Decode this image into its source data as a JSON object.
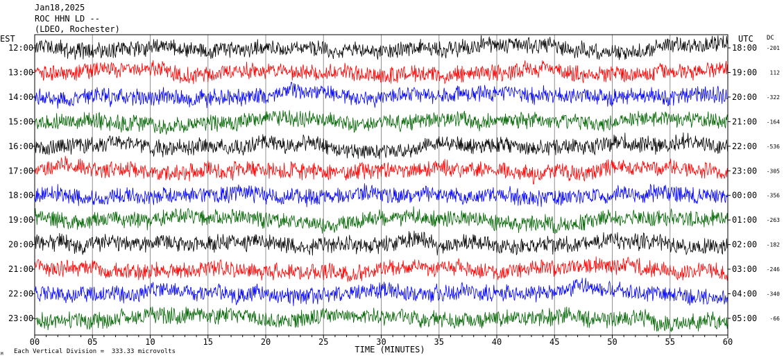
{
  "header": {
    "date": "Jan18,2025",
    "station": "ROC HHN LD --",
    "network": "(LDEO, Rochester)"
  },
  "footer": {
    "scale_note": "Each Vertical Division =  333.33 microvolts",
    "small_mark": "M"
  },
  "chart_data": {
    "type": "line",
    "left_axis_title": "EST",
    "right_axis_title": "UTC",
    "dc_title": "DC",
    "xlabel": "TIME (MINUTES)",
    "x_ticks": [
      "00",
      "05",
      "10",
      "15",
      "20",
      "25",
      "30",
      "35",
      "40",
      "45",
      "50",
      "55",
      "60"
    ],
    "xlim": [
      0,
      60
    ],
    "grid_vertical_every_minutes": 5,
    "trace_colors": [
      "#000000",
      "#ff0000",
      "#0000ff",
      "#006400"
    ],
    "rows": [
      {
        "est": "12:00",
        "utc": "18:00",
        "dc": "-201"
      },
      {
        "est": "13:00",
        "utc": "19:00",
        "dc": "112"
      },
      {
        "est": "14:00",
        "utc": "20:00",
        "dc": "-322"
      },
      {
        "est": "15:00",
        "utc": "21:00",
        "dc": "-164"
      },
      {
        "est": "16:00",
        "utc": "22:00",
        "dc": "-536"
      },
      {
        "est": "17:00",
        "utc": "23:00",
        "dc": "-305"
      },
      {
        "est": "18:00",
        "utc": "00:00",
        "dc": "-356"
      },
      {
        "est": "19:00",
        "utc": "01:00",
        "dc": "-263"
      },
      {
        "est": "20:00",
        "utc": "02:00",
        "dc": "-182"
      },
      {
        "est": "21:00",
        "utc": "03:00",
        "dc": "-246"
      },
      {
        "est": "22:00",
        "utc": "04:00",
        "dc": "-340"
      },
      {
        "est": "23:00",
        "utc": "05:00",
        "dc": "-66"
      }
    ]
  }
}
